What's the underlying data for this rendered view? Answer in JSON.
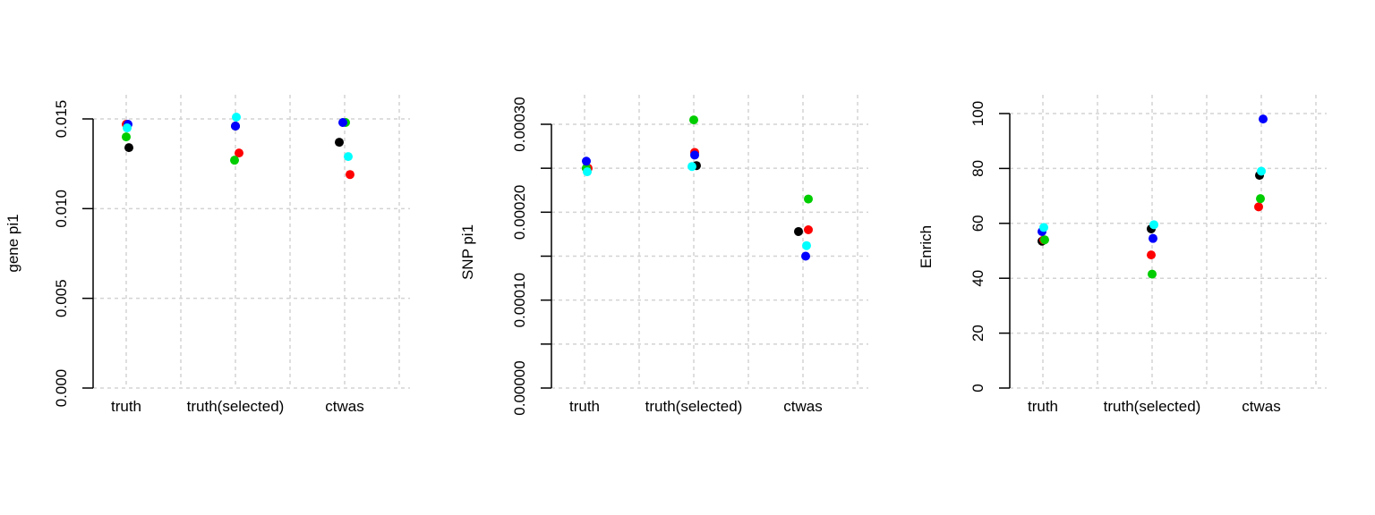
{
  "chart_data": [
    {
      "type": "scatter",
      "ylabel": "gene pi1",
      "categories": [
        "truth",
        "truth(selected)",
        "ctwas"
      ],
      "ylim": [
        0,
        0.015
      ],
      "y_ticks": [
        0.0,
        0.005,
        0.01,
        0.015
      ],
      "y_tick_labels": [
        "0.000",
        "0.005",
        "0.010",
        "0.015"
      ],
      "grid": true,
      "series": [
        {
          "color": "#000000",
          "values": [
            0.0134,
            0.0146,
            0.0137
          ]
        },
        {
          "color": "#ff0000",
          "values": [
            0.0147,
            0.0131,
            0.0119
          ]
        },
        {
          "color": "#00cd00",
          "values": [
            0.014,
            0.0127,
            0.0148
          ]
        },
        {
          "color": "#0000ff",
          "values": [
            0.0147,
            0.0146,
            0.0148
          ]
        },
        {
          "color": "#00ffff",
          "values": [
            0.0145,
            0.0151,
            0.0129
          ]
        }
      ]
    },
    {
      "type": "scatter",
      "ylabel": "SNP pi1",
      "categories": [
        "truth",
        "truth(selected)",
        "ctwas"
      ],
      "ylim": [
        0,
        0.0003
      ],
      "y_ticks": [
        0.0,
        5e-05,
        0.0001,
        0.00015,
        0.0002,
        0.00025,
        0.0003
      ],
      "y_tick_labels": [
        "0.00000",
        "",
        "0.00010",
        "",
        "0.00020",
        "",
        "0.00030"
      ],
      "grid": true,
      "series": [
        {
          "color": "#000000",
          "values": [
            0.00025,
            0.000253,
            0.000178
          ]
        },
        {
          "color": "#ff0000",
          "values": [
            0.00025,
            0.000268,
            0.00018
          ]
        },
        {
          "color": "#00cd00",
          "values": [
            0.00025,
            0.000305,
            0.000215
          ]
        },
        {
          "color": "#0000ff",
          "values": [
            0.000258,
            0.000265,
            0.00015
          ]
        },
        {
          "color": "#00ffff",
          "values": [
            0.000246,
            0.000252,
            0.000162
          ]
        }
      ]
    },
    {
      "type": "scatter",
      "ylabel": "Enrich",
      "categories": [
        "truth",
        "truth(selected)",
        "ctwas"
      ],
      "ylim": [
        0,
        100
      ],
      "y_ticks": [
        0,
        20,
        40,
        60,
        80,
        100
      ],
      "y_tick_labels": [
        "0",
        "20",
        "40",
        "60",
        "80",
        "100"
      ],
      "grid": true,
      "series": [
        {
          "color": "#000000",
          "values": [
            53.5,
            58,
            77.5
          ]
        },
        {
          "color": "#ff0000",
          "values": [
            54,
            48.5,
            66
          ]
        },
        {
          "color": "#00cd00",
          "values": [
            54,
            41.5,
            69
          ]
        },
        {
          "color": "#0000ff",
          "values": [
            57,
            54.5,
            98
          ]
        },
        {
          "color": "#00ffff",
          "values": [
            58.5,
            59.5,
            79
          ]
        }
      ]
    }
  ]
}
